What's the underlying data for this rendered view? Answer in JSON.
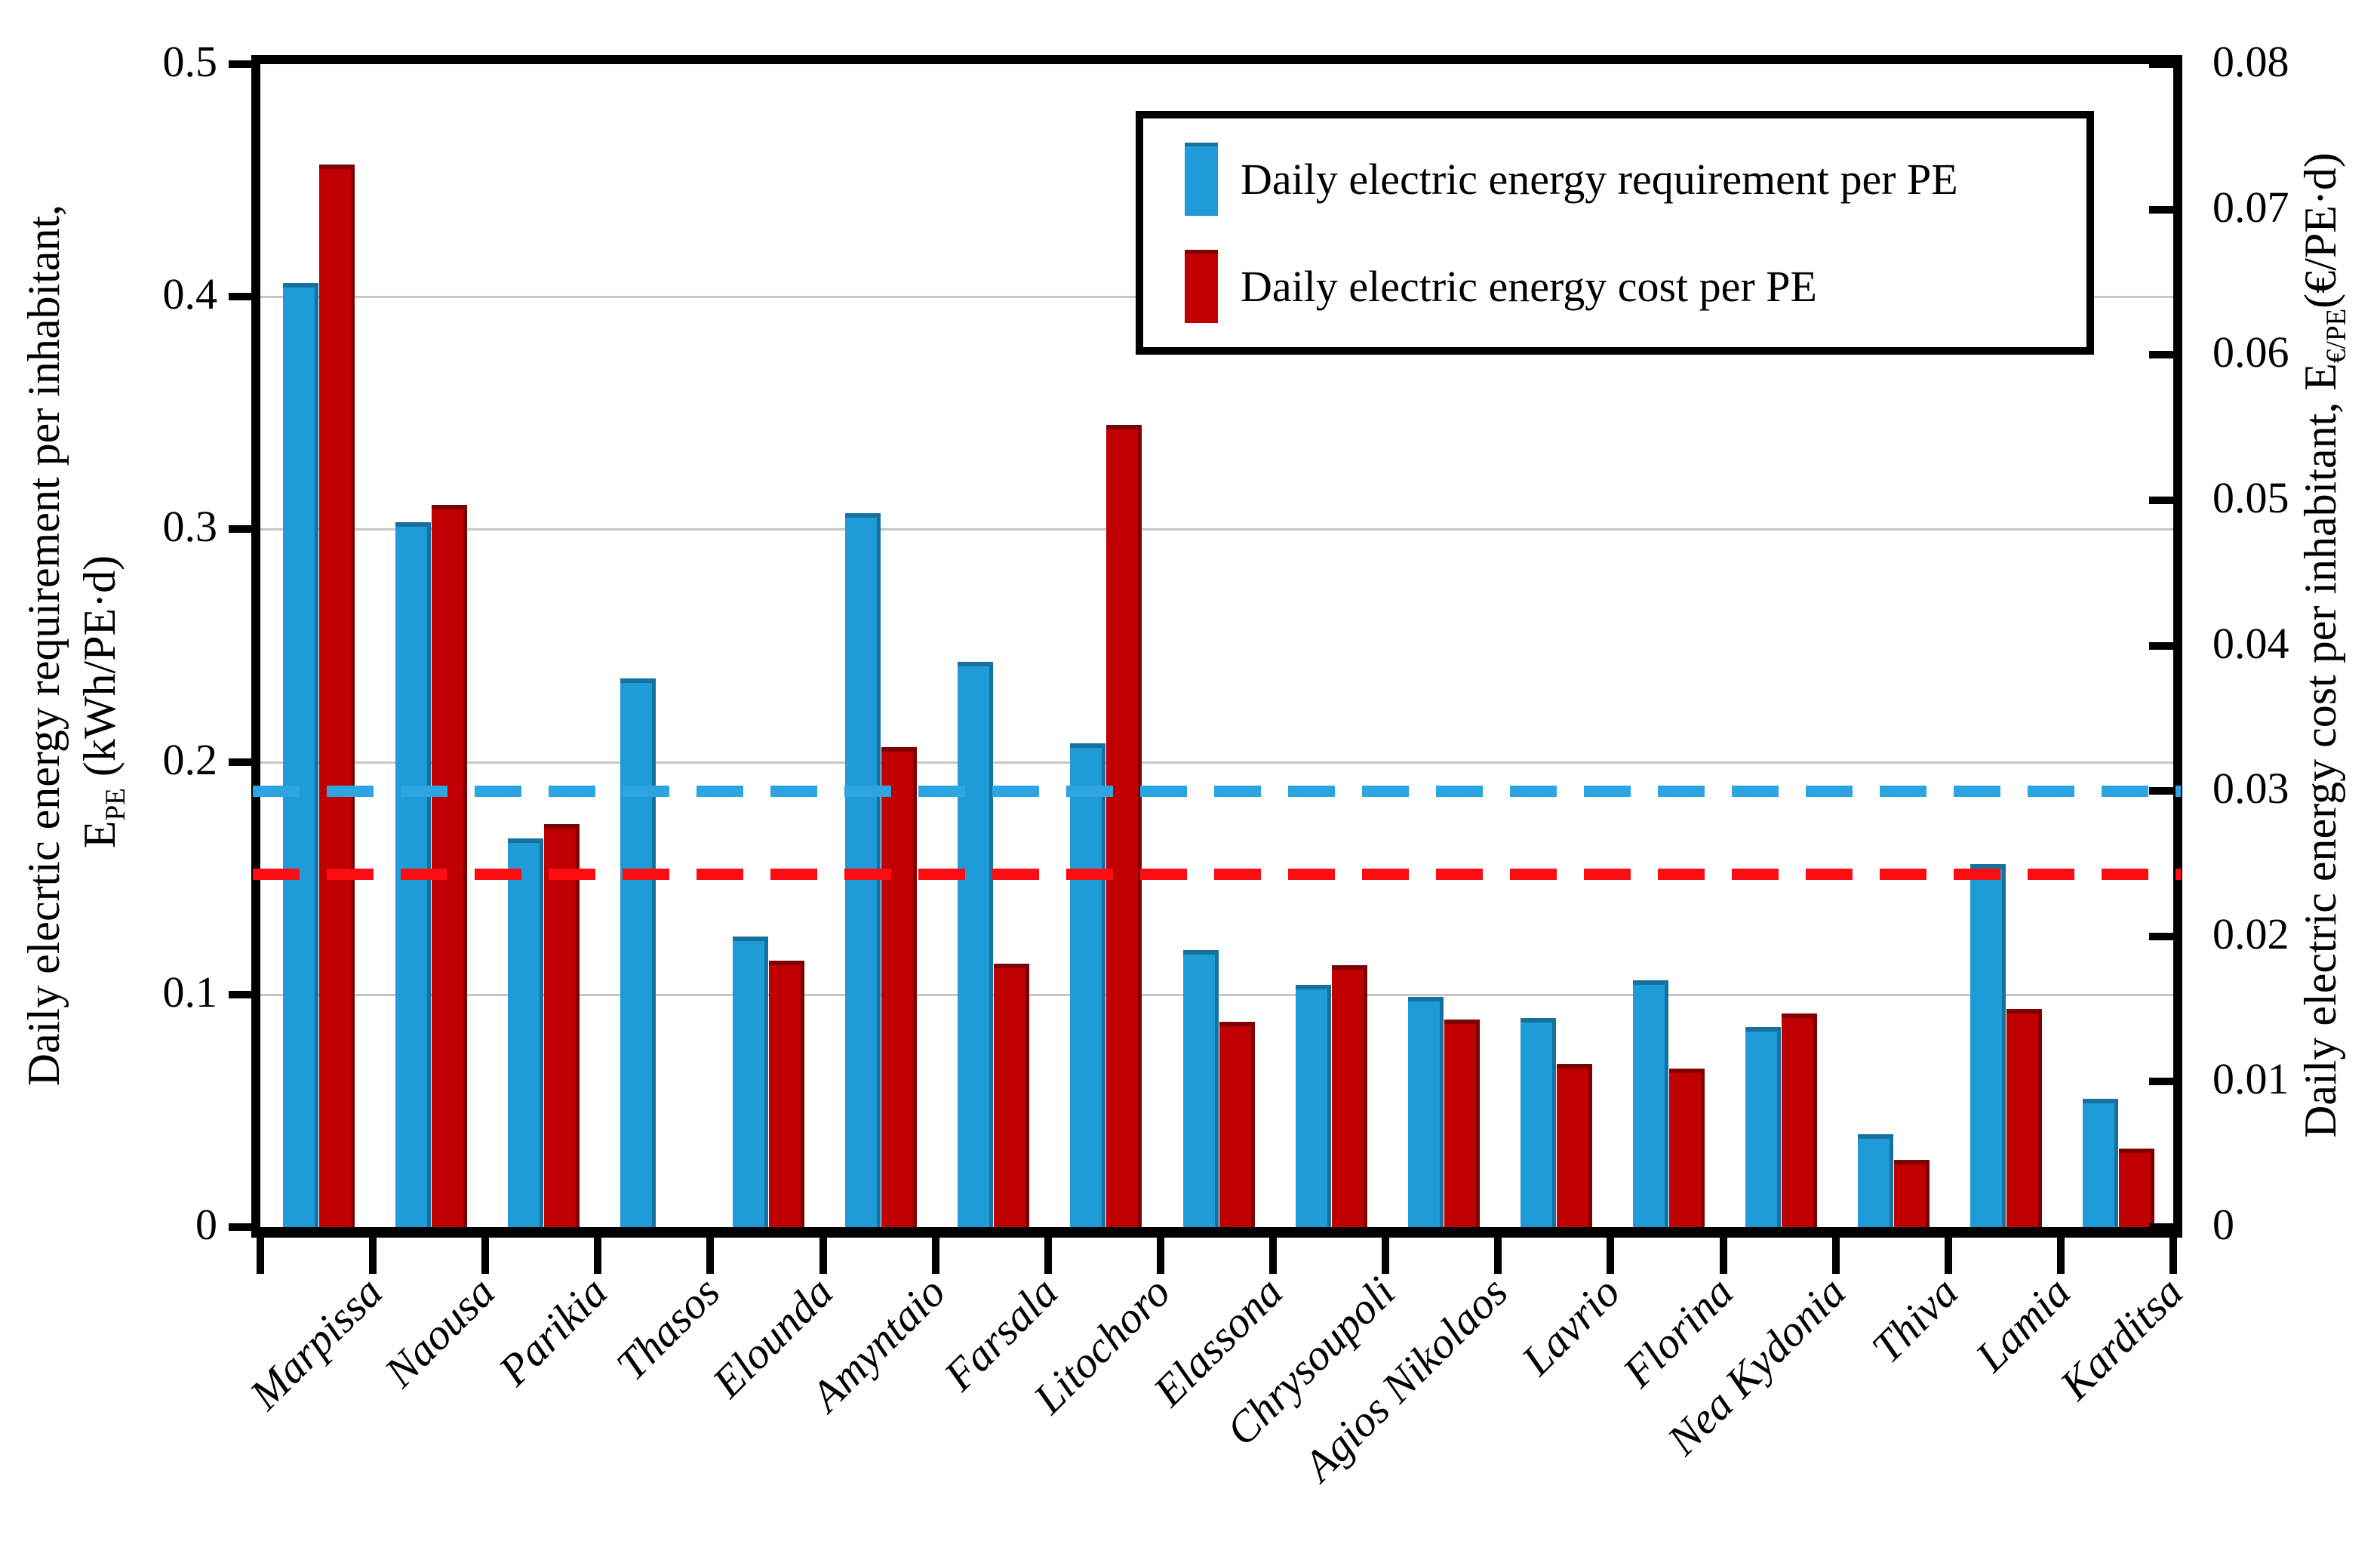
{
  "chart_data": {
    "type": "bar",
    "title": "",
    "categories": [
      "Marpissa",
      "Naousa",
      "Parikia",
      "Thasos",
      "Elounda",
      "Amyntaio",
      "Farsala",
      "Litochoro",
      "Elassona",
      "Chrysoupoli",
      "Agios Nikolaos",
      "Lavrio",
      "Florina",
      "Nea Kydonia",
      "Thiva",
      "Lamia",
      "Karditsa"
    ],
    "series": [
      {
        "name": "Daily electric energy requirement per PE",
        "axis": "left",
        "unit": "kWh/PE·d",
        "color": "#1f9bd7",
        "values": [
          0.406,
          0.303,
          0.167,
          0.236,
          0.125,
          0.307,
          0.243,
          0.208,
          0.119,
          0.104,
          0.099,
          0.09,
          0.106,
          0.086,
          0.04,
          0.156,
          0.055
        ]
      },
      {
        "name": "Daily electric energy cost per PE",
        "axis": "right",
        "unit": "€/PE·d",
        "color": "#c00000",
        "values": [
          0.0731,
          0.0497,
          0.0277,
          null,
          0.0183,
          0.033,
          0.0181,
          0.0552,
          0.0141,
          0.018,
          0.0143,
          0.0112,
          0.0109,
          0.0147,
          0.0046,
          0.015,
          0.0054
        ]
      }
    ],
    "reference_lines": [
      {
        "name": "average-requirement",
        "axis": "left",
        "value": 0.1875,
        "color": "#2ca5e0",
        "style": "dashed"
      },
      {
        "name": "average-cost",
        "axis": "right",
        "value": 0.0243,
        "color": "#fb0d14",
        "style": "dashed"
      }
    ],
    "left_axis": {
      "title_line1": "Daily elecrtic energy requirement per inhabitant,",
      "symbol_main": "E",
      "symbol_sub": "PE",
      "units": " (kWh/PE·d)",
      "min": 0,
      "max": 0.5,
      "ticks": [
        "0.5",
        "0.4",
        "0.3",
        "0.2",
        "0.1",
        "0"
      ]
    },
    "right_axis": {
      "title_text": "Daily electric energy cost per inhabitant, ",
      "symbol_main": "E",
      "symbol_sub": "€/PE",
      "units": "(€/PE·d)",
      "min": 0,
      "max": 0.08,
      "ticks": [
        "0.08",
        "0.07",
        "0.06",
        "0.05",
        "0.04",
        "0.03",
        "0.02",
        "0.01",
        "0"
      ]
    },
    "legend": {
      "items": [
        {
          "label": "Daily electric energy requirement per PE",
          "color": "#1f9bd7"
        },
        {
          "label": "Daily electric energy cost per PE",
          "color": "#c00000"
        }
      ],
      "position": "top-right"
    },
    "grid": "horizontal-major",
    "plot_frame_color": "#000000",
    "gridline_color": "#c6c6c6"
  }
}
